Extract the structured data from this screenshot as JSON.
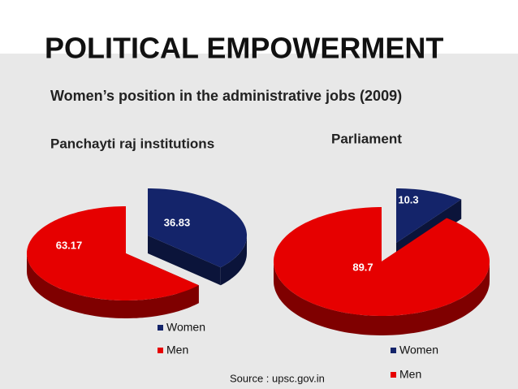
{
  "title": "POLITICAL EMPOWERMENT",
  "subtitle": "Women’s position in the administrative jobs (2009)",
  "source": "Source : upsc.gov.in",
  "chart_data": [
    {
      "type": "pie",
      "title": "Panchayti raj institutions",
      "categories": [
        "Women",
        "Men"
      ],
      "values": [
        36.83,
        63.17
      ],
      "colors": [
        "#14246a",
        "#e60000"
      ],
      "exploded": "Women"
    },
    {
      "type": "pie",
      "title": "Parliament",
      "categories": [
        "Women",
        "Men"
      ],
      "values": [
        10.3,
        89.7
      ],
      "colors": [
        "#14246a",
        "#e60000"
      ],
      "exploded": "Women"
    }
  ]
}
